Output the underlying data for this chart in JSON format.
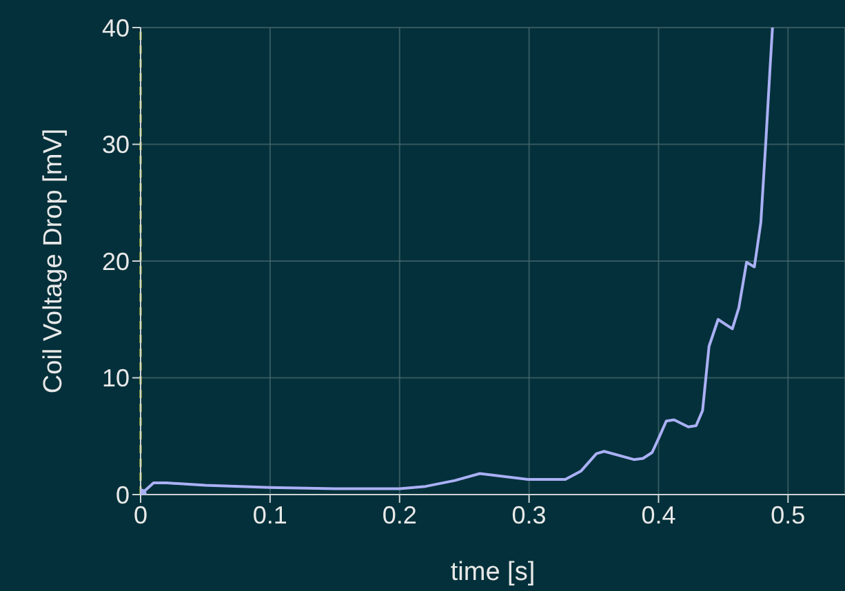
{
  "chart_data": {
    "type": "line",
    "xlabel": "time [s]",
    "ylabel": "Coil Voltage Drop [mV]",
    "xlim": [
      0,
      0.544
    ],
    "xticks": [
      0,
      0.1,
      0.2,
      0.3,
      0.4,
      0.5
    ],
    "ylim": [
      0,
      40
    ],
    "yticks": [
      0,
      10,
      20,
      30,
      40
    ],
    "grid": true,
    "line_style": "solid",
    "ref_lines": [
      {
        "axis": "x",
        "value": 0,
        "color": "#d8d820",
        "line_style": "dashed"
      }
    ],
    "series": [
      {
        "color": "#aab0f5",
        "marker": "none",
        "x": [
          0,
          0.01,
          0.02,
          0.05,
          0.1,
          0.15,
          0.2,
          0.22,
          0.2426,
          0.262,
          0.299,
          0.328,
          0.34,
          0.352,
          0.358,
          0.381,
          0.388,
          0.395,
          0.4,
          0.406,
          0.412,
          0.423,
          0.429,
          0.434,
          0.439,
          0.446,
          0.457,
          0.462,
          0.468,
          0.474,
          0.479,
          0.483,
          0.486,
          0.488
        ],
        "values": [
          0,
          1.0,
          1.0,
          0.8,
          0.6,
          0.5,
          0.5,
          0.7,
          1.2,
          1.8,
          1.3,
          1.3,
          2.0,
          3.5,
          3.7,
          3.0,
          3.1,
          3.6,
          4.8,
          6.3,
          6.4,
          5.8,
          5.9,
          7.2,
          12.7,
          15.0,
          14.2,
          16.0,
          19.9,
          19.5,
          23.3,
          30.5,
          36.3,
          40
        ]
      },
      {
        "type": "scatter",
        "color": "#aab0f5",
        "marker": "circle",
        "x": [
          0
        ],
        "values": [
          0
        ]
      }
    ]
  }
}
